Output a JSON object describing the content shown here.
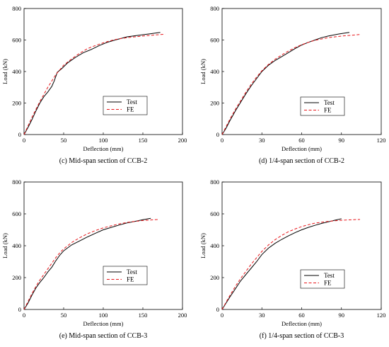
{
  "chart_data": [
    {
      "type": "line",
      "caption": "(c) Mid-span section of CCB-2",
      "xlabel": "Deflection (mm)",
      "ylabel": "Load (kN)",
      "xlim": [
        0,
        200
      ],
      "ylim": [
        0,
        800
      ],
      "xticks": [
        "0",
        "50",
        "100",
        "150",
        "200"
      ],
      "yticks": [
        "0",
        "200",
        "400",
        "600",
        "800"
      ],
      "grid": false,
      "legend_position": "bottom-right",
      "series": [
        {
          "name": "Test",
          "color": "#000000",
          "dash": "solid",
          "x": [
            0,
            5,
            10,
            15,
            20,
            25,
            30,
            35,
            38,
            42,
            48,
            55,
            65,
            75,
            85,
            95,
            105,
            115,
            130,
            145,
            160,
            172
          ],
          "y": [
            0,
            45,
            95,
            150,
            200,
            240,
            270,
            305,
            340,
            395,
            420,
            455,
            490,
            520,
            540,
            565,
            585,
            600,
            620,
            630,
            640,
            648
          ]
        },
        {
          "name": "FE",
          "color": "#e8171b",
          "dash": "dashed",
          "x": [
            0,
            5,
            10,
            15,
            20,
            25,
            30,
            35,
            40,
            45,
            50,
            60,
            70,
            80,
            90,
            100,
            110,
            120,
            135,
            150,
            165,
            178
          ],
          "y": [
            0,
            55,
            110,
            160,
            210,
            255,
            300,
            340,
            380,
            410,
            440,
            480,
            515,
            545,
            565,
            582,
            597,
            608,
            618,
            625,
            632,
            637
          ]
        }
      ]
    },
    {
      "type": "line",
      "caption": "(d) 1/4-span section of CCB-2",
      "xlabel": "Deflection (mm)",
      "ylabel": "Load (kN)",
      "xlim": [
        0,
        120
      ],
      "ylim": [
        0,
        800
      ],
      "xticks": [
        "0",
        "30",
        "60",
        "90",
        "120"
      ],
      "yticks": [
        "0",
        "200",
        "400",
        "600",
        "800"
      ],
      "grid": false,
      "legend_position": "bottom-right",
      "series": [
        {
          "name": "Test",
          "color": "#000000",
          "dash": "solid",
          "x": [
            0,
            3,
            6,
            10,
            14,
            18,
            22,
            26,
            30,
            35,
            40,
            45,
            50,
            55,
            60,
            65,
            70,
            75,
            80,
            88,
            96
          ],
          "y": [
            0,
            40,
            90,
            150,
            205,
            260,
            310,
            355,
            400,
            440,
            470,
            495,
            520,
            545,
            568,
            585,
            600,
            615,
            625,
            638,
            648
          ]
        },
        {
          "name": "FE",
          "color": "#e8171b",
          "dash": "dashed",
          "x": [
            0,
            3,
            6,
            10,
            14,
            18,
            22,
            26,
            30,
            35,
            40,
            45,
            50,
            55,
            60,
            65,
            70,
            80,
            90,
            100,
            104
          ],
          "y": [
            0,
            50,
            100,
            160,
            215,
            270,
            320,
            365,
            405,
            445,
            478,
            505,
            530,
            552,
            570,
            585,
            598,
            615,
            625,
            632,
            635
          ]
        }
      ]
    },
    {
      "type": "line",
      "caption": "(e) Mid-span section of CCB-3",
      "xlabel": "Deflection (mm)",
      "ylabel": "Load (kN)",
      "xlim": [
        0,
        200
      ],
      "ylim": [
        0,
        800
      ],
      "xticks": [
        "0",
        "50",
        "100",
        "150",
        "200"
      ],
      "yticks": [
        "0",
        "200",
        "400",
        "600",
        "800"
      ],
      "grid": false,
      "legend_position": "bottom-right",
      "series": [
        {
          "name": "Test",
          "color": "#000000",
          "dash": "solid",
          "x": [
            0,
            5,
            10,
            15,
            20,
            25,
            30,
            35,
            40,
            45,
            50,
            60,
            70,
            80,
            90,
            100,
            110,
            120,
            130,
            140,
            150,
            160
          ],
          "y": [
            0,
            40,
            90,
            135,
            170,
            200,
            235,
            265,
            305,
            340,
            368,
            405,
            430,
            455,
            478,
            500,
            515,
            530,
            543,
            553,
            563,
            572
          ]
        },
        {
          "name": "FE",
          "color": "#e8171b",
          "dash": "dashed",
          "x": [
            0,
            5,
            10,
            15,
            20,
            25,
            30,
            35,
            40,
            45,
            50,
            60,
            70,
            80,
            90,
            100,
            110,
            120,
            130,
            140,
            150,
            160,
            170
          ],
          "y": [
            0,
            50,
            100,
            145,
            185,
            220,
            255,
            290,
            325,
            355,
            380,
            420,
            450,
            475,
            495,
            512,
            525,
            537,
            546,
            553,
            558,
            562,
            565
          ]
        }
      ]
    },
    {
      "type": "line",
      "caption": "(f) 1/4-span section of CCB-3",
      "xlabel": "Deflection (mm)",
      "ylabel": "Load (kN)",
      "xlim": [
        0,
        120
      ],
      "ylim": [
        0,
        800
      ],
      "xticks": [
        "0",
        "30",
        "60",
        "90",
        "120"
      ],
      "yticks": [
        "0",
        "200",
        "400",
        "600",
        "800"
      ],
      "grid": false,
      "legend_position": "bottom-right",
      "series": [
        {
          "name": "Test",
          "color": "#000000",
          "dash": "solid",
          "x": [
            0,
            3,
            6,
            10,
            14,
            18,
            22,
            26,
            30,
            35,
            40,
            45,
            50,
            55,
            60,
            65,
            70,
            75,
            80,
            85,
            90
          ],
          "y": [
            0,
            40,
            80,
            130,
            180,
            220,
            260,
            300,
            345,
            385,
            415,
            440,
            462,
            482,
            500,
            515,
            528,
            540,
            550,
            560,
            570
          ]
        },
        {
          "name": "FE",
          "color": "#e8171b",
          "dash": "dashed",
          "x": [
            0,
            3,
            6,
            10,
            14,
            18,
            22,
            26,
            30,
            35,
            40,
            45,
            50,
            55,
            60,
            65,
            70,
            80,
            90,
            100,
            104
          ],
          "y": [
            0,
            45,
            90,
            145,
            195,
            240,
            285,
            325,
            365,
            405,
            438,
            465,
            488,
            505,
            520,
            532,
            542,
            553,
            560,
            564,
            565
          ]
        }
      ]
    }
  ]
}
